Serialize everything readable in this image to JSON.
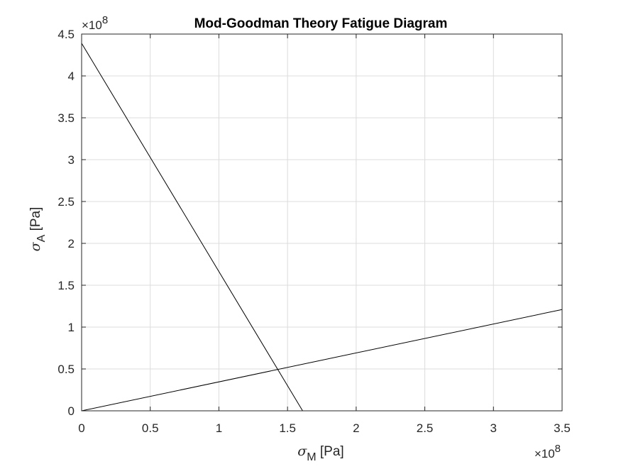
{
  "chart_data": {
    "type": "line",
    "title": "Mod-Goodman Theory Fatigue Diagram",
    "xlabel": {
      "symbol": "σ",
      "subscript": "M",
      "unit": " [Pa]"
    },
    "ylabel": {
      "symbol": "σ",
      "subscript": "A",
      "unit": " [Pa]"
    },
    "xlim": [
      0,
      350000000
    ],
    "ylim": [
      0,
      450000000
    ],
    "x_multiplier": {
      "base": "×10",
      "exp": "8"
    },
    "y_multiplier": {
      "base": "×10",
      "exp": "8"
    },
    "x_ticks": [
      0,
      0.5,
      1,
      1.5,
      2,
      2.5,
      3,
      3.5
    ],
    "x_tick_labels": [
      "0",
      "0.5",
      "1",
      "1.5",
      "2",
      "2.5",
      "3",
      "3.5"
    ],
    "y_ticks": [
      0,
      0.5,
      1,
      1.5,
      2,
      2.5,
      3,
      3.5,
      4,
      4.5
    ],
    "y_tick_labels": [
      "0",
      "0.5",
      "1",
      "1.5",
      "2",
      "2.5",
      "3",
      "3.5",
      "4",
      "4.5"
    ],
    "grid": true,
    "box": true,
    "line_color": "#000000",
    "series": [
      {
        "x": [
          0,
          161000000
        ],
        "y": [
          439000000,
          0
        ]
      },
      {
        "x": [
          0,
          350000000
        ],
        "y": [
          0,
          121000000
        ]
      }
    ]
  }
}
